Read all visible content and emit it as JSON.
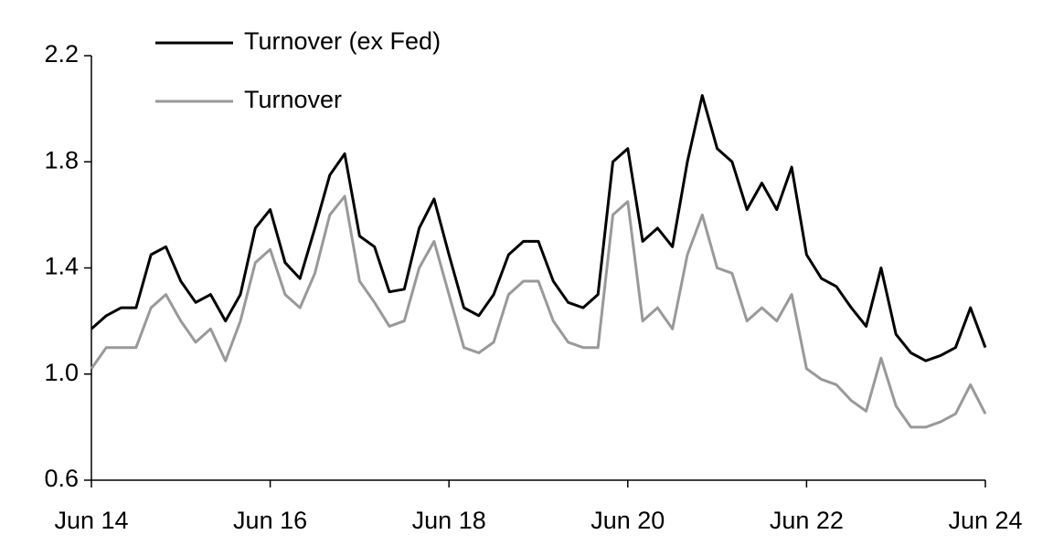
{
  "chart_data": {
    "type": "line",
    "categories": [
      "Jun 14",
      null,
      null,
      null,
      null,
      null,
      null,
      null,
      null,
      null,
      null,
      null,
      "Jun 16",
      null,
      null,
      null,
      null,
      null,
      null,
      null,
      null,
      null,
      null,
      null,
      "Jun 18",
      null,
      null,
      null,
      null,
      null,
      null,
      null,
      null,
      null,
      null,
      null,
      "Jun 20",
      null,
      null,
      null,
      null,
      null,
      null,
      null,
      null,
      null,
      null,
      null,
      "Jun 22",
      null,
      null,
      null,
      null,
      null,
      null,
      null,
      null,
      null,
      null,
      null,
      "Jun 24"
    ],
    "series": [
      {
        "name": "Turnover (ex Fed)",
        "color": "#000000",
        "values": [
          1.17,
          1.22,
          1.25,
          1.25,
          1.45,
          1.48,
          1.35,
          1.27,
          1.3,
          1.2,
          1.3,
          1.55,
          1.62,
          1.42,
          1.36,
          1.55,
          1.75,
          1.83,
          1.52,
          1.48,
          1.31,
          1.32,
          1.55,
          1.66,
          1.45,
          1.25,
          1.22,
          1.3,
          1.45,
          1.5,
          1.5,
          1.35,
          1.27,
          1.25,
          1.3,
          1.8,
          1.85,
          1.5,
          1.55,
          1.48,
          1.8,
          2.05,
          1.85,
          1.8,
          1.62,
          1.72,
          1.62,
          1.78,
          1.45,
          1.36,
          1.33,
          1.25,
          1.18,
          1.4,
          1.15,
          1.08,
          1.05,
          1.07,
          1.1,
          1.25,
          1.1
        ]
      },
      {
        "name": "Turnover",
        "color": "#999999",
        "values": [
          1.02,
          1.1,
          1.1,
          1.1,
          1.25,
          1.3,
          1.2,
          1.12,
          1.17,
          1.05,
          1.2,
          1.42,
          1.47,
          1.3,
          1.25,
          1.38,
          1.6,
          1.67,
          1.35,
          1.27,
          1.18,
          1.2,
          1.4,
          1.5,
          1.3,
          1.1,
          1.08,
          1.12,
          1.3,
          1.35,
          1.35,
          1.2,
          1.12,
          1.1,
          1.1,
          1.6,
          1.65,
          1.2,
          1.25,
          1.17,
          1.45,
          1.6,
          1.4,
          1.38,
          1.2,
          1.25,
          1.2,
          1.3,
          1.02,
          0.98,
          0.96,
          0.9,
          0.86,
          1.06,
          0.88,
          0.8,
          0.8,
          0.82,
          0.85,
          0.96,
          0.85
        ]
      }
    ],
    "ylim": [
      0.6,
      2.2
    ],
    "yticks": [
      0.6,
      {
        "value": 1.0,
        "label": "1.0"
      },
      1.4,
      1.8,
      2.2
    ],
    "grid": false,
    "legend": "top-left"
  }
}
